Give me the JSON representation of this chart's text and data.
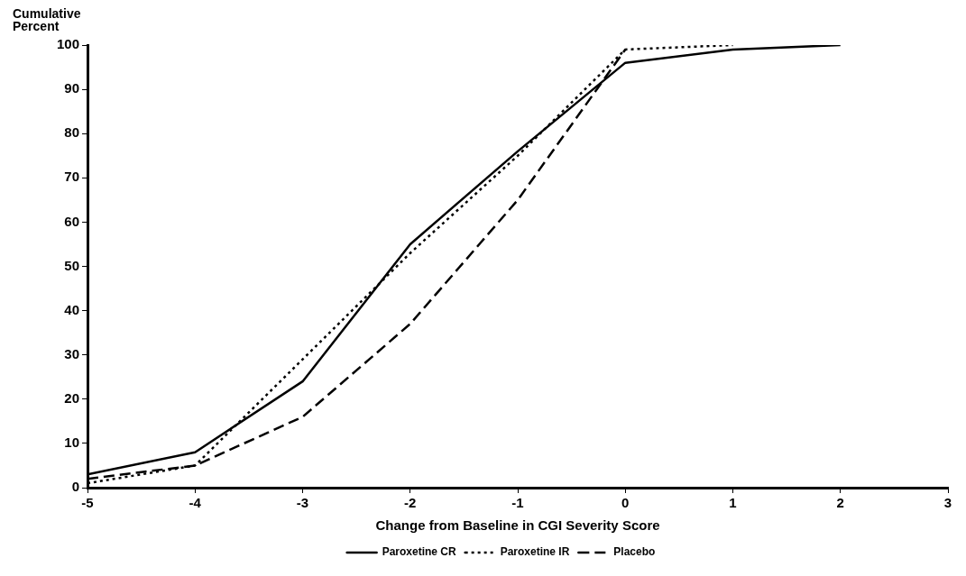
{
  "chart_data": {
    "type": "line",
    "ylabel": "Cumulative\nPercent",
    "xlabel": "Change from Baseline in CGI Severity Score",
    "xlim": [
      -5,
      3
    ],
    "xticks": [
      -5,
      -4,
      -3,
      -2,
      -1,
      0,
      1,
      2,
      3
    ],
    "ylim": [
      0,
      100
    ],
    "yticks": [
      0,
      10,
      20,
      30,
      40,
      50,
      60,
      70,
      80,
      90,
      100
    ],
    "grid": false,
    "legend": "bottom",
    "marker": "none",
    "series": [
      {
        "name": "Paroxetine CR",
        "color": "#000000",
        "line_style": "solid",
        "x": [
          -5,
          -4,
          -3,
          -2,
          -1,
          0,
          1,
          2
        ],
        "values": [
          3,
          8,
          24,
          55,
          76,
          96,
          99,
          100
        ]
      },
      {
        "name": "Paroxetine IR",
        "color": "#000000",
        "line_style": "dotted",
        "x": [
          -5,
          -4,
          -3,
          -2,
          -1,
          0,
          1
        ],
        "values": [
          1,
          5,
          29,
          53,
          75,
          99,
          100
        ]
      },
      {
        "name": "Placebo",
        "color": "#000000",
        "line_style": "dashed",
        "x": [
          -5,
          -4,
          -3,
          -2,
          -1,
          0
        ],
        "values": [
          2,
          5,
          16,
          37,
          65,
          99
        ]
      }
    ]
  }
}
